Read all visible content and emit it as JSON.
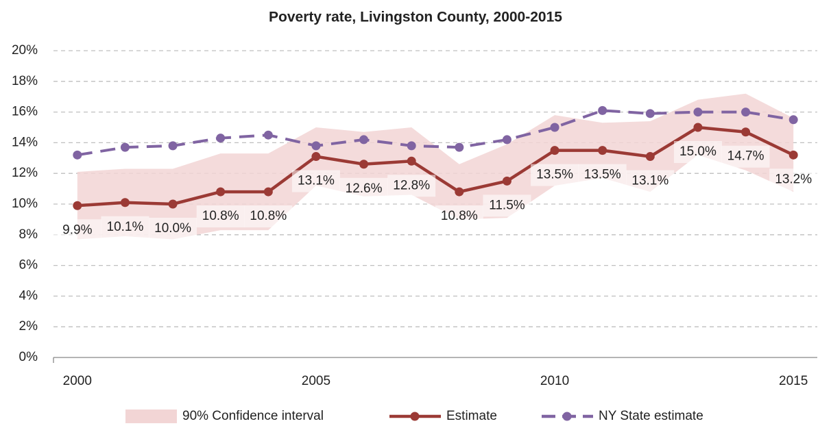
{
  "chart_data": {
    "type": "line",
    "title": "Poverty rate, Livingston County, 2000-2015",
    "x": [
      2000,
      2001,
      2002,
      2003,
      2004,
      2005,
      2006,
      2007,
      2008,
      2009,
      2010,
      2011,
      2012,
      2013,
      2014,
      2015
    ],
    "xlim": [
      1999.5,
      2015.5
    ],
    "xticks": [
      2000,
      2005,
      2010,
      2015
    ],
    "ylim": [
      0,
      20
    ],
    "yticks": [
      {
        "value": 0,
        "label": "0%"
      },
      {
        "value": 2,
        "label": "2%"
      },
      {
        "value": 4,
        "label": "4%"
      },
      {
        "value": 6,
        "label": "6%"
      },
      {
        "value": 8,
        "label": "8%"
      },
      {
        "value": 10,
        "label": "10%"
      },
      {
        "value": 12,
        "label": "12%"
      },
      {
        "value": 14,
        "label": "14%"
      },
      {
        "value": 16,
        "label": "16%"
      },
      {
        "value": 18,
        "label": "18%"
      },
      {
        "value": 20,
        "label": "20%"
      }
    ],
    "grid": true,
    "legend": "bottom",
    "series": [
      {
        "name": "90% Confidence interval",
        "type": "band",
        "color": "#f2d5d5",
        "lower": [
          7.7,
          7.9,
          7.7,
          8.3,
          8.3,
          11.2,
          10.5,
          10.6,
          9.0,
          9.1,
          11.2,
          11.7,
          10.8,
          13.2,
          12.2,
          10.8
        ],
        "upper": [
          12.1,
          12.3,
          12.3,
          13.3,
          13.3,
          15.0,
          14.7,
          15.0,
          12.6,
          13.9,
          15.8,
          15.3,
          15.4,
          16.8,
          17.2,
          15.6
        ]
      },
      {
        "name": "Estimate",
        "type": "line",
        "color": "#9b3a35",
        "values": [
          9.9,
          10.1,
          10.0,
          10.8,
          10.8,
          13.1,
          12.6,
          12.8,
          10.8,
          11.5,
          13.5,
          13.5,
          13.1,
          15.0,
          14.7,
          13.2
        ],
        "value_labels": [
          "9.9%",
          "10.1%",
          "10.0%",
          "10.8%",
          "10.8%",
          "13.1%",
          "12.6%",
          "12.8%",
          "10.8%",
          "11.5%",
          "13.5%",
          "13.5%",
          "13.1%",
          "15.0%",
          "14.7%",
          "13.2%"
        ]
      },
      {
        "name": "NY State estimate",
        "type": "line",
        "dash": true,
        "color": "#8064a2",
        "values": [
          13.2,
          13.7,
          13.8,
          14.3,
          14.5,
          13.8,
          14.2,
          13.8,
          13.7,
          14.2,
          15.0,
          16.1,
          15.9,
          16.0,
          16.0,
          15.5
        ]
      }
    ]
  }
}
